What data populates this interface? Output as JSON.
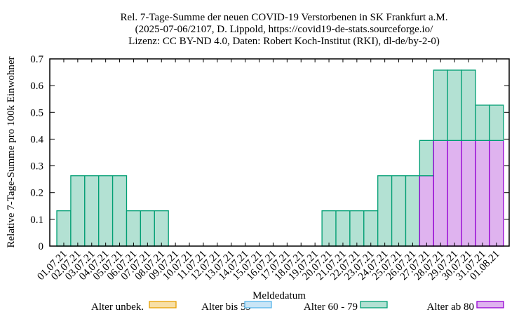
{
  "chart_data": {
    "type": "bar",
    "stacked": true,
    "title_lines": [
      "Rel. 7-Tage-Summe der neuen COVID-19 Verstorbenen in SK Frankfurt a.M.",
      "(2025-07-06/2107, D. Lippold, https://covid19-de-stats.sourceforge.io/",
      "Lizenz: CC BY-ND 4.0, Daten: Robert Koch-Institut (RKI), dl-de/by-2-0)"
    ],
    "xlabel": "Meldedatum",
    "ylabel": "Relative 7-Tage-Summe pro 100k Einwohner",
    "ylim": [
      0,
      0.7
    ],
    "yticks": [
      "0",
      "0.1",
      "0.2",
      "0.3",
      "0.4",
      "0.5",
      "0.6",
      "0.7"
    ],
    "grid": false,
    "legend_position": "bottom",
    "categories": [
      "01.07.21",
      "02.07.21",
      "03.07.21",
      "04.07.21",
      "05.07.21",
      "06.07.21",
      "07.07.21",
      "08.07.21",
      "09.07.21",
      "10.07.21",
      "11.07.21",
      "12.07.21",
      "13.07.21",
      "14.07.21",
      "15.07.21",
      "16.07.21",
      "17.07.21",
      "18.07.21",
      "19.07.21",
      "20.07.21",
      "21.07.21",
      "22.07.21",
      "23.07.21",
      "24.07.21",
      "25.07.21",
      "26.07.21",
      "27.07.21",
      "28.07.21",
      "29.07.21",
      "30.07.21",
      "31.07.21",
      "01.08.21"
    ],
    "series": [
      {
        "name": "Alter unbek.",
        "fill": "#f7dfa6",
        "stroke": "#e69f00",
        "values": [
          0,
          0,
          0,
          0,
          0,
          0,
          0,
          0,
          0,
          0,
          0,
          0,
          0,
          0,
          0,
          0,
          0,
          0,
          0,
          0,
          0,
          0,
          0,
          0,
          0,
          0,
          0,
          0,
          0,
          0,
          0,
          0
        ]
      },
      {
        "name": "Alter bis 59",
        "fill": "#c9e5f6",
        "stroke": "#56b4e9",
        "values": [
          0,
          0,
          0,
          0,
          0,
          0,
          0,
          0,
          0,
          0,
          0,
          0,
          0,
          0,
          0,
          0,
          0,
          0,
          0,
          0,
          0,
          0,
          0,
          0,
          0,
          0,
          0,
          0,
          0,
          0,
          0,
          0
        ]
      },
      {
        "name": "Alter 60 - 79",
        "fill": "#b3e1d3",
        "stroke": "#009e73",
        "values": [
          0.132,
          0.263,
          0.263,
          0.263,
          0.263,
          0.132,
          0.132,
          0.132,
          0,
          0,
          0,
          0,
          0,
          0,
          0,
          0,
          0,
          0,
          0,
          0.132,
          0.132,
          0.132,
          0.132,
          0.263,
          0.263,
          0.263,
          0.132,
          0.263,
          0.263,
          0.263,
          0.132,
          0.132
        ]
      },
      {
        "name": "Alter ab 80",
        "fill": "#dfb3ef",
        "stroke": "#9400d3",
        "values": [
          0,
          0,
          0,
          0,
          0,
          0,
          0,
          0,
          0,
          0,
          0,
          0,
          0,
          0,
          0,
          0,
          0,
          0,
          0,
          0,
          0,
          0,
          0,
          0,
          0,
          0,
          0.263,
          0.395,
          0.395,
          0.395,
          0.395,
          0.395
        ]
      }
    ]
  }
}
